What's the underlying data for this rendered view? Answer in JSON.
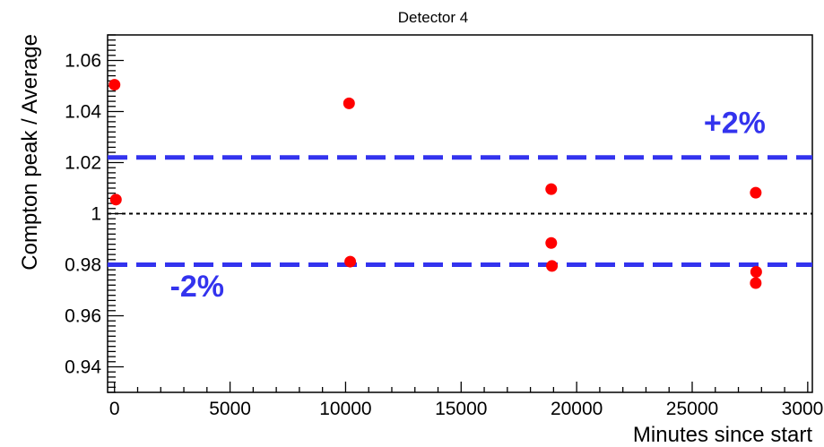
{
  "chart_data": {
    "type": "scatter",
    "title": "Detector 4",
    "xlabel": "Minutes since start",
    "ylabel": "Compton peak / Average",
    "xlim": [
      -300,
      30200
    ],
    "ylim": [
      0.93,
      1.07
    ],
    "x_ticks": [
      0,
      5000,
      10000,
      15000,
      20000,
      25000,
      30000
    ],
    "x_tick_labels": [
      "0",
      "5000",
      "10000",
      "15000",
      "20000",
      "25000",
      "30000"
    ],
    "y_ticks": [
      0.94,
      0.96,
      0.98,
      1.0,
      1.02,
      1.04,
      1.06
    ],
    "y_tick_labels": [
      "0.94",
      "0.96",
      "0.98",
      "1",
      "1.02",
      "1.04",
      "1.06"
    ],
    "grid": false,
    "series": [
      {
        "color": "#ff0000",
        "points": [
          {
            "x": 0,
            "y": 1.0505
          },
          {
            "x": 60,
            "y": 1.0055
          },
          {
            "x": 10150,
            "y": 1.0432
          },
          {
            "x": 10200,
            "y": 0.9812
          },
          {
            "x": 18900,
            "y": 1.0096
          },
          {
            "x": 18900,
            "y": 0.9885
          },
          {
            "x": 18930,
            "y": 0.9795
          },
          {
            "x": 27750,
            "y": 1.0082
          },
          {
            "x": 27770,
            "y": 0.9772
          },
          {
            "x": 27750,
            "y": 0.9728
          }
        ]
      }
    ],
    "reference_lines": [
      {
        "y": 1.0,
        "style": "dotted",
        "color": "#000000"
      },
      {
        "y": 1.022,
        "style": "dashed",
        "color": "#3333ee"
      },
      {
        "y": 0.98,
        "style": "dashed",
        "color": "#3333ee"
      }
    ],
    "annotations": [
      {
        "text": "+2%",
        "x": 25500,
        "y": 1.0315,
        "color": "#3333ee"
      },
      {
        "text": "-2%",
        "x": 2400,
        "y": 0.9675,
        "color": "#3333ee"
      }
    ]
  }
}
